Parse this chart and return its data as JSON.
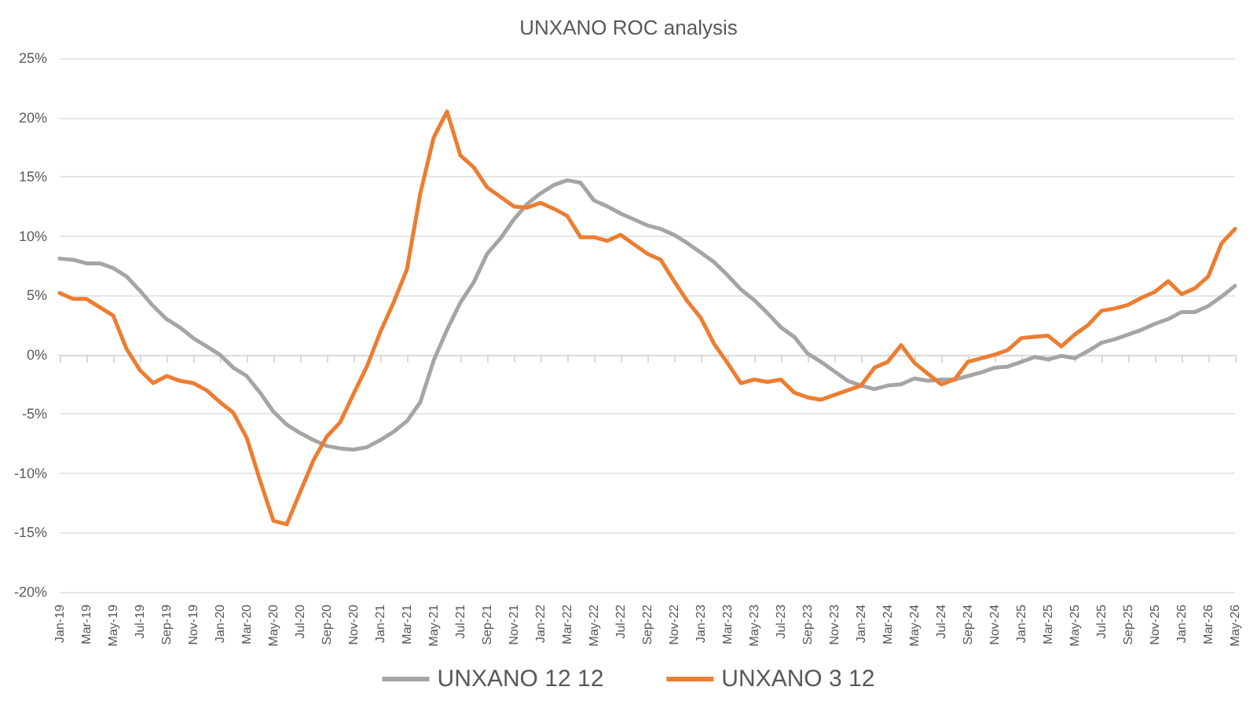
{
  "chart_data": {
    "type": "line",
    "title": "UNXANO ROC analysis",
    "categories": [
      "Jan-19",
      null,
      "Mar-19",
      null,
      "May-19",
      null,
      "Jul-19",
      null,
      "Sep-19",
      null,
      "Nov-19",
      null,
      "Jan-20",
      null,
      "Mar-20",
      null,
      "May-20",
      null,
      "Jul-20",
      null,
      "Sep-20",
      null,
      "Nov-20",
      null,
      "Jan-21",
      null,
      "Mar-21",
      null,
      "May-21",
      null,
      "Jul-21",
      null,
      "Sep-21",
      null,
      "Nov-21",
      null,
      "Jan-22",
      null,
      "Mar-22",
      null,
      "May-22",
      null,
      "Jul-22",
      null,
      "Sep-22",
      null,
      "Nov-22",
      null,
      "Jan-23",
      null,
      "Mar-23",
      null,
      "May-23",
      null,
      "Jul-23",
      null,
      "Sep-23",
      null,
      "Nov-23",
      null,
      "Jan-24",
      null,
      "Mar-24",
      null,
      "May-24",
      null,
      "Jul-24",
      null,
      "Sep-24",
      null,
      "Nov-24",
      null,
      "Jan-25",
      null,
      "Mar-25",
      null,
      "May-25",
      null,
      "Jul-25",
      null,
      "Sep-25",
      null,
      "Nov-25",
      null,
      "Jan-26",
      null,
      "Mar-26",
      null,
      "May-26"
    ],
    "series": [
      {
        "name": "UNXANO 12 12",
        "color": "#a5a5a5",
        "values": [
          8.1,
          8.0,
          7.7,
          7.7,
          7.3,
          6.6,
          5.4,
          4.1,
          3.0,
          2.3,
          1.4,
          0.7,
          0.0,
          -1.1,
          -1.8,
          -3.2,
          -4.8,
          -5.9,
          -6.6,
          -7.2,
          -7.7,
          -7.9,
          -8.0,
          -7.8,
          -7.2,
          -6.5,
          -5.6,
          -4.0,
          -0.5,
          2.1,
          4.4,
          6.1,
          8.5,
          9.8,
          11.4,
          12.7,
          13.6,
          14.3,
          14.7,
          14.5,
          13.0,
          12.5,
          11.9,
          11.4,
          10.9,
          10.6,
          10.1,
          9.4,
          8.6,
          7.8,
          6.7,
          5.5,
          4.6,
          3.5,
          2.3,
          1.5,
          0.1,
          -0.6,
          -1.4,
          -2.2,
          -2.6,
          -2.9,
          -2.6,
          -2.5,
          -2.0,
          -2.2,
          -2.1,
          -2.1,
          -1.8,
          -1.5,
          -1.1,
          -1.0,
          -0.6,
          -0.2,
          -0.4,
          -0.1,
          -0.3,
          0.3,
          1.0,
          1.3,
          1.7,
          2.1,
          2.6,
          3.0,
          3.6,
          3.6,
          4.1,
          4.9,
          5.8
        ]
      },
      {
        "name": "UNXANO 3 12",
        "color": "#ed7d31",
        "values": [
          5.2,
          4.7,
          4.7,
          4.0,
          3.3,
          0.5,
          -1.3,
          -2.4,
          -1.8,
          -2.2,
          -2.4,
          -3.0,
          -4.0,
          -4.9,
          -7.0,
          -10.6,
          -14.0,
          -14.3,
          -11.6,
          -8.9,
          -6.9,
          -5.7,
          -3.3,
          -1.0,
          1.9,
          4.4,
          7.2,
          13.6,
          18.3,
          20.5,
          16.8,
          15.8,
          14.1,
          13.3,
          12.5,
          12.4,
          12.8,
          12.3,
          11.7,
          9.9,
          9.9,
          9.6,
          10.1,
          9.3,
          8.5,
          8.0,
          6.2,
          4.5,
          3.1,
          0.9,
          -0.7,
          -2.4,
          -2.1,
          -2.3,
          -2.1,
          -3.2,
          -3.6,
          -3.8,
          -3.4,
          -3.0,
          -2.6,
          -1.1,
          -0.6,
          0.8,
          -0.7,
          -1.6,
          -2.5,
          -2.1,
          -0.6,
          -0.3,
          0.0,
          0.4,
          1.4,
          1.5,
          1.6,
          0.7,
          1.7,
          2.5,
          3.7,
          3.9,
          4.2,
          4.8,
          5.3,
          6.2,
          5.1,
          5.6,
          6.6,
          9.4,
          10.6
        ]
      }
    ],
    "ylim": [
      -20,
      25
    ],
    "yticks": [
      {
        "value": -20,
        "label": "-20%"
      },
      {
        "value": -15,
        "label": "-15%"
      },
      {
        "value": -10,
        "label": "-10%"
      },
      {
        "value": -5,
        "label": "-5%"
      },
      {
        "value": 0,
        "label": "0%"
      },
      {
        "value": 5,
        "label": "5%"
      },
      {
        "value": 10,
        "label": "10%"
      },
      {
        "value": 15,
        "label": "15%"
      },
      {
        "value": 20,
        "label": "20%"
      },
      {
        "value": 25,
        "label": "25%"
      }
    ],
    "grid": "y",
    "legend": "bottom",
    "marker": "none",
    "line_style": "solid"
  }
}
